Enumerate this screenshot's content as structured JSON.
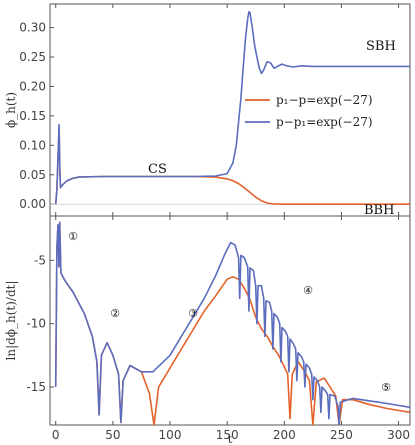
{
  "chart_data": [
    {
      "type": "line",
      "panel": "top",
      "xlabel": "",
      "ylabel": "ϕ_h(t)",
      "xlim": [
        -5,
        310
      ],
      "ylim": [
        -0.02,
        0.34
      ],
      "xticks": [],
      "yticks": [
        "0.00",
        "0.05",
        "0.10",
        "0.15",
        "0.20",
        "0.25",
        "0.30"
      ],
      "legend_position": "right",
      "colors": {
        "orange": "#e4622a",
        "blue": "#5b6dbf"
      },
      "annotations": [
        "CS",
        "SBH",
        "BBH"
      ],
      "series": [
        {
          "name": "p₁−p=exp(−27)",
          "color": "#e4622a",
          "points": [
            [
              0,
              0.0
            ],
            [
              1,
              0.025
            ],
            [
              2,
              0.08
            ],
            [
              3,
              0.13
            ],
            [
              3.6,
              0.06
            ],
            [
              4.2,
              0.028
            ],
            [
              6,
              0.033
            ],
            [
              10,
              0.04
            ],
            [
              15,
              0.044
            ],
            [
              20,
              0.046
            ],
            [
              40,
              0.047
            ],
            [
              80,
              0.047
            ],
            [
              120,
              0.047
            ],
            [
              140,
              0.046
            ],
            [
              150,
              0.043
            ],
            [
              155,
              0.04
            ],
            [
              160,
              0.035
            ],
            [
              165,
              0.028
            ],
            [
              170,
              0.02
            ],
            [
              175,
              0.012
            ],
            [
              180,
              0.006
            ],
            [
              185,
              0.002
            ],
            [
              190,
              0.0005
            ],
            [
              200,
              0.0
            ],
            [
              250,
              0.0
            ],
            [
              310,
              0.0
            ]
          ]
        },
        {
          "name": "p−p₁=exp(−27)",
          "color": "#5b6dbf",
          "points": [
            [
              0,
              0.0
            ],
            [
              1,
              0.025
            ],
            [
              2,
              0.08
            ],
            [
              3,
              0.135
            ],
            [
              3.6,
              0.06
            ],
            [
              4.2,
              0.028
            ],
            [
              6,
              0.033
            ],
            [
              10,
              0.04
            ],
            [
              15,
              0.044
            ],
            [
              20,
              0.046
            ],
            [
              40,
              0.047
            ],
            [
              80,
              0.047
            ],
            [
              120,
              0.047
            ],
            [
              140,
              0.048
            ],
            [
              150,
              0.052
            ],
            [
              155,
              0.07
            ],
            [
              158,
              0.1
            ],
            [
              160,
              0.14
            ],
            [
              162,
              0.18
            ],
            [
              164,
              0.23
            ],
            [
              166,
              0.28
            ],
            [
              168,
              0.315
            ],
            [
              169,
              0.327
            ],
            [
              170,
              0.325
            ],
            [
              172,
              0.3
            ],
            [
              174,
              0.27
            ],
            [
              176,
              0.25
            ],
            [
              178,
              0.232
            ],
            [
              180,
              0.222
            ],
            [
              182,
              0.228
            ],
            [
              185,
              0.242
            ],
            [
              188,
              0.24
            ],
            [
              191,
              0.231
            ],
            [
              194,
              0.234
            ],
            [
              198,
              0.238
            ],
            [
              202,
              0.235
            ],
            [
              208,
              0.233
            ],
            [
              215,
              0.235
            ],
            [
              225,
              0.234
            ],
            [
              240,
              0.234
            ],
            [
              260,
              0.234
            ],
            [
              310,
              0.234
            ]
          ]
        }
      ]
    },
    {
      "type": "line",
      "panel": "bottom",
      "xlabel": "t",
      "ylabel": "ln|dϕ_h(t)/dt|",
      "xlim": [
        -5,
        310
      ],
      "ylim": [
        -18,
        -1.5
      ],
      "xticks": [
        "0",
        "50",
        "100",
        "150",
        "200",
        "250",
        "300"
      ],
      "yticks": [
        "-5",
        "-10",
        "-15"
      ],
      "annotations": [
        "①",
        "②",
        "③",
        "④",
        "⑤"
      ],
      "series": [
        {
          "name": "p₁−p=exp(−27)",
          "color": "#e4622a",
          "points": [
            [
              0,
              -15
            ],
            [
              1,
              -4
            ],
            [
              2,
              -2.2
            ],
            [
              2.8,
              -5.5
            ],
            [
              3.5,
              -2.0
            ],
            [
              4.5,
              -6
            ],
            [
              8,
              -6.6
            ],
            [
              15,
              -7.5
            ],
            [
              25,
              -9.2
            ],
            [
              32,
              -11
            ],
            [
              36,
              -13
            ],
            [
              38,
              -17.2
            ],
            [
              40,
              -12.5
            ],
            [
              45,
              -11.5
            ],
            [
              50,
              -12.5
            ],
            [
              55,
              -14
            ],
            [
              57,
              -17.8
            ],
            [
              59,
              -14.5
            ],
            [
              65,
              -13.3
            ],
            [
              75,
              -13.8
            ],
            [
              82,
              -15.5
            ],
            [
              86,
              -18
            ],
            [
              90,
              -15
            ],
            [
              100,
              -13.5
            ],
            [
              110,
              -12
            ],
            [
              120,
              -10.5
            ],
            [
              130,
              -9
            ],
            [
              140,
              -7.8
            ],
            [
              150,
              -6.5
            ],
            [
              155,
              -6.3
            ],
            [
              160,
              -6.5
            ],
            [
              165,
              -7.2
            ],
            [
              170,
              -8.1
            ],
            [
              175,
              -9.5
            ],
            [
              180,
              -10.4
            ],
            [
              185,
              -11
            ],
            [
              190,
              -11.8
            ],
            [
              195,
              -12.5
            ],
            [
              200,
              -13.4
            ],
            [
              203,
              -14
            ],
            [
              205,
              -17.5
            ],
            [
              207,
              -14
            ],
            [
              212,
              -13
            ],
            [
              218,
              -13.8
            ],
            [
              222,
              -14.5
            ],
            [
              225,
              -18
            ],
            [
              228,
              -14.6
            ],
            [
              235,
              -14.3
            ],
            [
              240,
              -15.0
            ],
            [
              245,
              -15.7
            ],
            [
              248,
              -18
            ],
            [
              251,
              -16
            ],
            [
              260,
              -16
            ],
            [
              275,
              -16.4
            ],
            [
              290,
              -16.7
            ],
            [
              310,
              -17.0
            ]
          ]
        },
        {
          "name": "p−p₁=exp(−27)",
          "color": "#5b6dbf",
          "points": [
            [
              0,
              -15
            ],
            [
              1,
              -4
            ],
            [
              2,
              -2.2
            ],
            [
              2.8,
              -5.5
            ],
            [
              3.5,
              -2.0
            ],
            [
              4.5,
              -6
            ],
            [
              8,
              -6.6
            ],
            [
              15,
              -7.5
            ],
            [
              25,
              -9.2
            ],
            [
              32,
              -11
            ],
            [
              36,
              -13
            ],
            [
              38,
              -17.2
            ],
            [
              40,
              -12.5
            ],
            [
              45,
              -11.5
            ],
            [
              50,
              -12.5
            ],
            [
              55,
              -14
            ],
            [
              57,
              -17.8
            ],
            [
              59,
              -14.5
            ],
            [
              65,
              -13.3
            ],
            [
              75,
              -13.8
            ],
            [
              85,
              -13.8
            ],
            [
              100,
              -12.5
            ],
            [
              110,
              -11
            ],
            [
              120,
              -9.5
            ],
            [
              130,
              -8
            ],
            [
              140,
              -6.2
            ],
            [
              148,
              -4.5
            ],
            [
              153,
              -3.6
            ],
            [
              157,
              -3.8
            ],
            [
              160,
              -4.8
            ],
            [
              161,
              -8
            ],
            [
              162,
              -4.6
            ],
            [
              165,
              -4.8
            ],
            [
              168,
              -5.5
            ],
            [
              169,
              -9
            ],
            [
              170,
              -5.6
            ],
            [
              173,
              -5.8
            ],
            [
              175,
              -7.0
            ],
            [
              176,
              -10
            ],
            [
              177,
              -7.0
            ],
            [
              180,
              -7.0
            ],
            [
              182,
              -8.0
            ],
            [
              183,
              -11
            ],
            [
              184,
              -8.2
            ],
            [
              187,
              -8.3
            ],
            [
              189,
              -9.0
            ],
            [
              190,
              -12
            ],
            [
              191,
              -9.2
            ],
            [
              194,
              -9.5
            ],
            [
              196,
              -10
            ],
            [
              197,
              -13
            ],
            [
              198,
              -10.3
            ],
            [
              201,
              -10.6
            ],
            [
              203,
              -11
            ],
            [
              204,
              -13.8
            ],
            [
              205,
              -11.2
            ],
            [
              208,
              -11.6
            ],
            [
              210,
              -12
            ],
            [
              211,
              -14.5
            ],
            [
              212,
              -12.3
            ],
            [
              215,
              -12.6
            ],
            [
              217,
              -13
            ],
            [
              218,
              -15
            ],
            [
              219,
              -13.2
            ],
            [
              222,
              -13.5
            ],
            [
              224,
              -14
            ],
            [
              225,
              -16
            ],
            [
              226,
              -14.2
            ],
            [
              229,
              -14.5
            ],
            [
              231,
              -15
            ],
            [
              232,
              -17
            ],
            [
              233,
              -15.0
            ],
            [
              236,
              -15.3
            ],
            [
              238,
              -15.6
            ],
            [
              239,
              -17.5
            ],
            [
              240,
              -15.6
            ],
            [
              244,
              -15.7
            ],
            [
              247,
              -16.5
            ],
            [
              248,
              -18
            ],
            [
              249,
              -16.2
            ],
            [
              260,
              -15.9
            ],
            [
              275,
              -16.1
            ],
            [
              290,
              -16.3
            ],
            [
              310,
              -16.6
            ]
          ]
        }
      ]
    }
  ]
}
